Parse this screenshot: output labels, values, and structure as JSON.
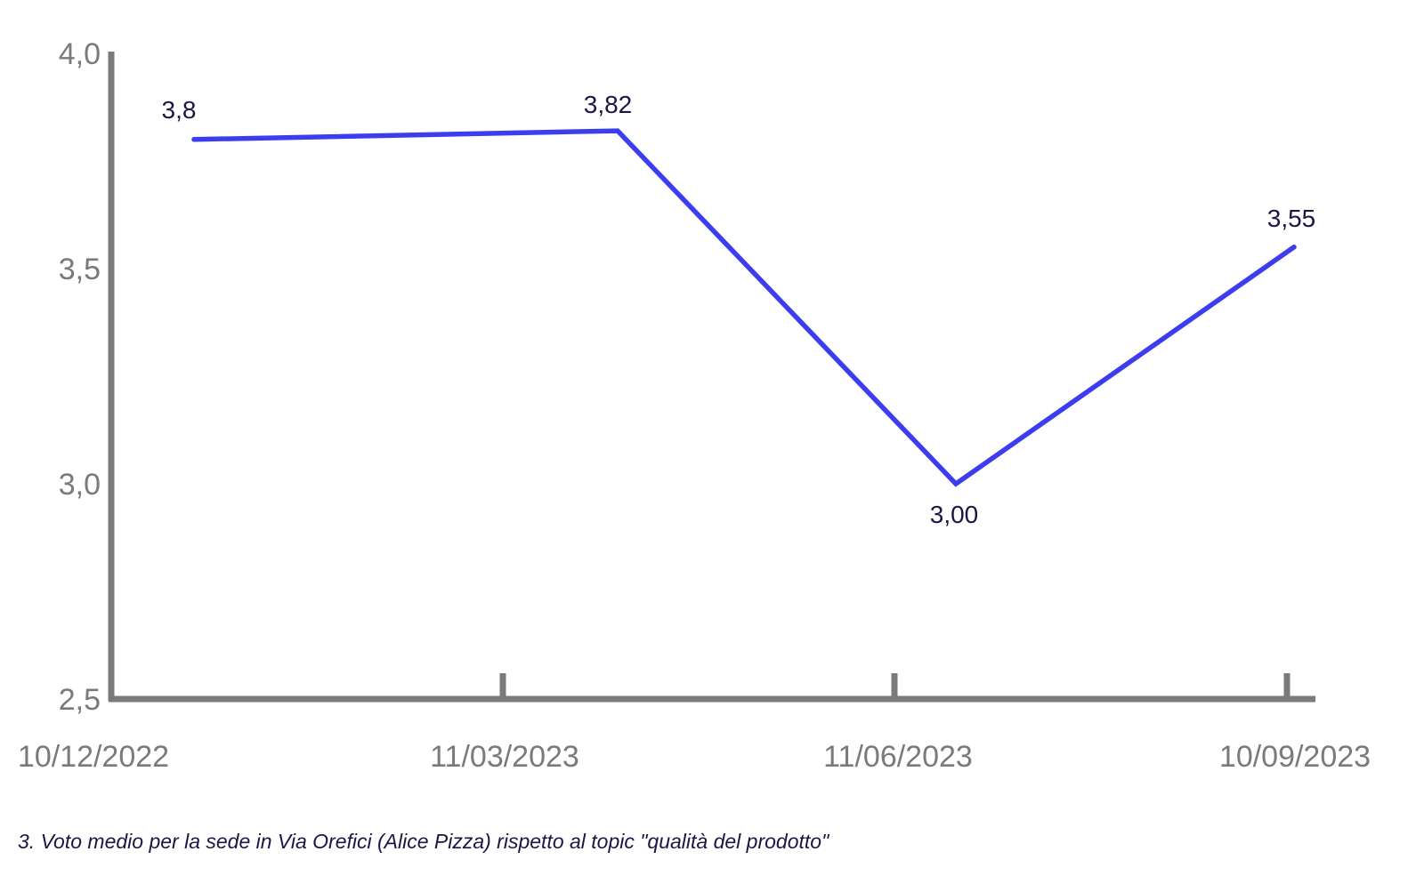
{
  "chart_data": {
    "type": "line",
    "x": [
      "10/12/2022",
      "11/03/2023",
      "11/06/2023",
      "10/09/2023"
    ],
    "series": [
      {
        "values": [
          3.8,
          3.82,
          3.0,
          3.55
        ],
        "data_labels": [
          "3,8",
          "3,82",
          "3,00",
          "3,55"
        ]
      }
    ],
    "yticks": [
      "2,5",
      "3,0",
      "3,5",
      "4,0"
    ],
    "ytick_values": [
      2.5,
      3.0,
      3.5,
      4.0
    ],
    "xticks": [
      "10/12/2022",
      "11/03/2023",
      "11/06/2023",
      "10/09/2023"
    ],
    "ylim": [
      2.5,
      4.0
    ],
    "grid": false,
    "legend": "none",
    "caption": "3. Voto medio per la sede in Via Orefici (Alice Pizza) rispetto al topic \"qualità del prodotto\"",
    "colors": {
      "line": "#3d3df0",
      "axis": "#7a7a7a",
      "tick_text": "#7a7a7a",
      "label_text": "#1f1545"
    }
  }
}
